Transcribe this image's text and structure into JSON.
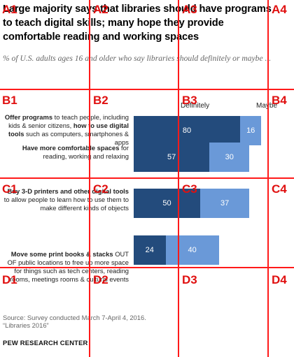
{
  "title": "Large majority says that libraries should have programs to teach digital skills; many hope they provide comfortable reading and working spaces",
  "subtitle": "% of U.S. adults ages 16 and older who say libraries should definitely or maybe ...",
  "legend": {
    "definitely": "Definitely",
    "maybe": "Maybe"
  },
  "rows": [
    {
      "label_parts": [
        {
          "b": true,
          "t": "Offer programs"
        },
        {
          "b": false,
          "t": " to teach people, including kids & senior citizens, "
        },
        {
          "b": true,
          "t": "how to use digital tools"
        },
        {
          "b": false,
          "t": " such as computers, smartphones & apps"
        }
      ],
      "definitely": "80",
      "maybe": "16"
    },
    {
      "label_parts": [
        {
          "b": true,
          "t": "Have more comfortable spaces"
        },
        {
          "b": false,
          "t": " for reading, working and relaxing"
        }
      ],
      "definitely": "57",
      "maybe": "30"
    },
    {
      "label_parts": [
        {
          "b": true,
          "t": "Buy 3-D printers and other digital tools"
        },
        {
          "b": false,
          "t": " to allow people to learn how to use them to make different kinds of objects"
        }
      ],
      "definitely": "50",
      "maybe": "37"
    },
    {
      "label_parts": [
        {
          "b": true,
          "t": "Move some print books & stacks"
        },
        {
          "b": false,
          "t": " OUT OF public locations to free up more space for things such as tech centers, reading rooms, meetings rooms & cultural events"
        }
      ],
      "definitely": "24",
      "maybe": "40"
    }
  ],
  "chart_data": {
    "type": "bar",
    "orientation": "horizontal",
    "stacked": true,
    "title": "Large majority says that libraries should have programs to teach digital skills; many hope they provide comfortable reading and working spaces",
    "subtitle": "% of U.S. adults ages 16 and older who say libraries should definitely or maybe ...",
    "categories": [
      "Offer programs to teach people, including kids & senior citizens, how to use digital tools such as computers, smartphones & apps",
      "Have more comfortable spaces for reading, working and relaxing",
      "Buy 3-D printers and other digital tools to allow people to learn how to use them to make different kinds of objects",
      "Move some print books & stacks OUT OF public locations to free up more space for things such as tech centers, reading rooms, meetings rooms & cultural events"
    ],
    "series": [
      {
        "name": "Definitely",
        "values": [
          80,
          57,
          50,
          24
        ],
        "color": "#234b7c"
      },
      {
        "name": "Maybe",
        "values": [
          16,
          30,
          37,
          40
        ],
        "color": "#6a99d8"
      }
    ],
    "xlim": [
      0,
      100
    ],
    "legend_position": "top"
  },
  "source_lines": [
    "Source: Survey conducted March 7-April 4, 2016.",
    "“Libraries 2016”"
  ],
  "org": "PEW RESEARCH CENTER",
  "grid": {
    "color": "#ff1a1a",
    "labels": [
      "A1",
      "A2",
      "A3",
      "A4",
      "B1",
      "B2",
      "B3",
      "B4",
      "C1",
      "C2",
      "C3",
      "C4",
      "D1",
      "D2",
      "D3",
      "D4"
    ]
  }
}
